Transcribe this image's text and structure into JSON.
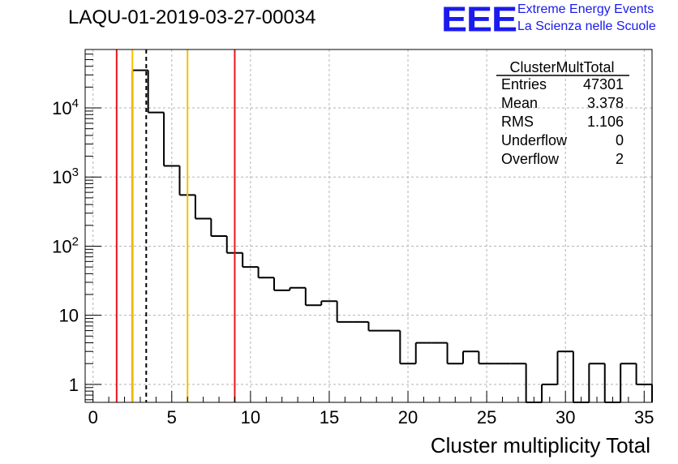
{
  "header": {
    "title": "LAQU-01-2019-03-27-00034",
    "logo": "EEE",
    "tagline1": "Extreme Energy Events",
    "tagline2": "La Scienza nelle Scuole"
  },
  "stats": {
    "title": "ClusterMultTotal",
    "rows": [
      {
        "label": "Entries",
        "value": "47301"
      },
      {
        "label": "Mean",
        "value": "3.378"
      },
      {
        "label": "RMS",
        "value": "1.106"
      },
      {
        "label": "Underflow",
        "value": "0"
      },
      {
        "label": "Overflow",
        "value": "2"
      }
    ]
  },
  "colors": {
    "red": "#e8141b",
    "orange": "#f5c000",
    "histogram": "#000000",
    "grid": "#b3b3b3",
    "logo": "#1a1aee"
  },
  "chart_data": {
    "type": "bar",
    "histogram": "step",
    "xlabel": "Cluster multiplicity Total",
    "ylabel": "",
    "xlim": [
      -0.5,
      35.5
    ],
    "ylim": [
      0.55,
      70000
    ],
    "yscale": "log",
    "grid": true,
    "x_ticks": [
      0,
      5,
      10,
      15,
      20,
      25,
      30,
      35
    ],
    "y_ticks": [
      {
        "value": 1,
        "label": "1"
      },
      {
        "value": 10,
        "label": "10"
      },
      {
        "value": 100,
        "label": "10^2"
      },
      {
        "value": 1000,
        "label": "10^3"
      },
      {
        "value": 10000,
        "label": "10^4"
      }
    ],
    "bin_edges": [
      2.5,
      3.5,
      4.5,
      5.5,
      6.5,
      7.5,
      8.5,
      9.5,
      10.5,
      11.5,
      12.5,
      13.5,
      14.5,
      15.5,
      16.5,
      17.5,
      18.5,
      19.5,
      20.5,
      21.5,
      22.5,
      23.5,
      24.5,
      25.5,
      26.5,
      27.5,
      28.5,
      29.5,
      30.5,
      31.5,
      32.5,
      33.5,
      34.5,
      35.5
    ],
    "values": [
      35000,
      8600,
      1450,
      550,
      250,
      140,
      80,
      50,
      35,
      23,
      25,
      14,
      16,
      8,
      8,
      6,
      6,
      2,
      4,
      4,
      2,
      3,
      2,
      2,
      2,
      0,
      1,
      3,
      0,
      2,
      0,
      2,
      1
    ],
    "vertical_lines": [
      {
        "x": 1.5,
        "color": "red",
        "style": "solid"
      },
      {
        "x": 2.5,
        "color": "orange",
        "style": "solid"
      },
      {
        "x": 3.378,
        "color": "black",
        "style": "dashed"
      },
      {
        "x": 6.0,
        "color": "orange",
        "style": "solid"
      },
      {
        "x": 9.0,
        "color": "red",
        "style": "solid"
      }
    ]
  }
}
